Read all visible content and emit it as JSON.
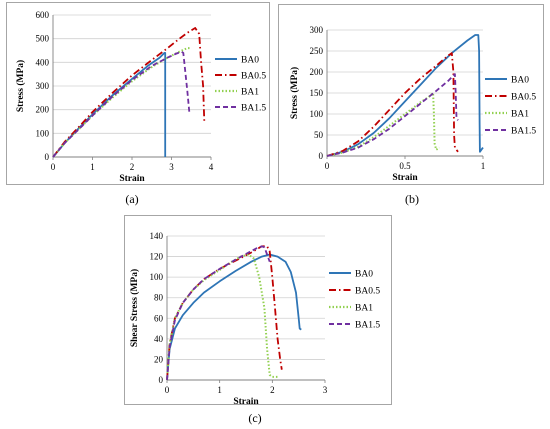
{
  "captions": {
    "a": "(a)",
    "b": "(b)",
    "c": "(c)"
  },
  "chart_data": [
    {
      "id": "a",
      "type": "line",
      "xlabel": "Strain",
      "ylabel": "Stress (MPa)",
      "xlim": [
        0,
        4
      ],
      "ylim": [
        0,
        600
      ],
      "xticks": [
        "0",
        "1",
        "2",
        "3",
        "4"
      ],
      "yticks": [
        "0",
        "100",
        "200",
        "300",
        "400",
        "500",
        "600"
      ],
      "grid": "horizontal",
      "legend_position": "right",
      "series": [
        {
          "name": "BA0",
          "color": "#2e75b6",
          "dash": "solid",
          "points": [
            [
              0,
              0
            ],
            [
              0.3,
              60
            ],
            [
              0.7,
              130
            ],
            [
              1.0,
              180
            ],
            [
              1.5,
              260
            ],
            [
              2.0,
              330
            ],
            [
              2.4,
              385
            ],
            [
              2.7,
              420
            ],
            [
              2.82,
              440
            ],
            [
              2.84,
              440
            ],
            [
              2.84,
              0
            ]
          ]
        },
        {
          "name": "BA0.5",
          "color": "#c00000",
          "dash": "dashdot",
          "points": [
            [
              0,
              0
            ],
            [
              0.3,
              65
            ],
            [
              0.7,
              135
            ],
            [
              1.0,
              190
            ],
            [
              1.5,
              270
            ],
            [
              2.0,
              345
            ],
            [
              2.5,
              410
            ],
            [
              2.9,
              460
            ],
            [
              3.2,
              500
            ],
            [
              3.4,
              525
            ],
            [
              3.6,
              545
            ],
            [
              3.7,
              520
            ],
            [
              3.75,
              400
            ],
            [
              3.8,
              300
            ],
            [
              3.83,
              150
            ]
          ]
        },
        {
          "name": "BA1",
          "color": "#92d050",
          "dash": "dotted",
          "points": [
            [
              0,
              0
            ],
            [
              0.3,
              60
            ],
            [
              0.7,
              125
            ],
            [
              1.0,
              175
            ],
            [
              1.5,
              250
            ],
            [
              2.0,
              320
            ],
            [
              2.5,
              380
            ],
            [
              2.9,
              420
            ],
            [
              3.2,
              445
            ],
            [
              3.4,
              460
            ],
            [
              3.5,
              460
            ]
          ]
        },
        {
          "name": "BA1.5",
          "color": "#7030a0",
          "dash": "dashed",
          "points": [
            [
              0,
              0
            ],
            [
              0.3,
              60
            ],
            [
              0.7,
              125
            ],
            [
              1.0,
              175
            ],
            [
              1.5,
              255
            ],
            [
              2.0,
              325
            ],
            [
              2.5,
              385
            ],
            [
              2.9,
              420
            ],
            [
              3.1,
              435
            ],
            [
              3.25,
              445
            ],
            [
              3.3,
              440
            ],
            [
              3.4,
              280
            ],
            [
              3.45,
              190
            ]
          ]
        }
      ]
    },
    {
      "id": "b",
      "type": "line",
      "xlabel": "Strain",
      "ylabel": "Stress (MPa)",
      "xlim": [
        0,
        1
      ],
      "ylim": [
        0,
        300
      ],
      "xticks": [
        "0",
        "0.5",
        "1"
      ],
      "yticks": [
        "0",
        "50",
        "100",
        "150",
        "200",
        "250",
        "300"
      ],
      "grid": "horizontal",
      "legend_position": "right",
      "series": [
        {
          "name": "BA0",
          "color": "#2e75b6",
          "dash": "solid",
          "points": [
            [
              0,
              0
            ],
            [
              0.1,
              10
            ],
            [
              0.2,
              28
            ],
            [
              0.3,
              55
            ],
            [
              0.4,
              90
            ],
            [
              0.5,
              130
            ],
            [
              0.6,
              170
            ],
            [
              0.7,
              210
            ],
            [
              0.8,
              245
            ],
            [
              0.9,
              275
            ],
            [
              0.95,
              288
            ],
            [
              0.97,
              288
            ],
            [
              0.975,
              250
            ],
            [
              0.978,
              80
            ],
            [
              0.98,
              10
            ],
            [
              0.99,
              15
            ],
            [
              1.0,
              20
            ]
          ]
        },
        {
          "name": "BA0.5",
          "color": "#c00000",
          "dash": "dashdot",
          "points": [
            [
              0,
              0
            ],
            [
              0.1,
              12
            ],
            [
              0.2,
              35
            ],
            [
              0.3,
              70
            ],
            [
              0.4,
              110
            ],
            [
              0.5,
              150
            ],
            [
              0.6,
              185
            ],
            [
              0.7,
              215
            ],
            [
              0.78,
              240
            ],
            [
              0.8,
              245
            ],
            [
              0.81,
              200
            ],
            [
              0.815,
              50
            ],
            [
              0.82,
              20
            ],
            [
              0.84,
              10
            ]
          ]
        },
        {
          "name": "BA1",
          "color": "#92d050",
          "dash": "dotted",
          "points": [
            [
              0,
              0
            ],
            [
              0.1,
              8
            ],
            [
              0.2,
              22
            ],
            [
              0.3,
              45
            ],
            [
              0.4,
              72
            ],
            [
              0.5,
              100
            ],
            [
              0.6,
              128
            ],
            [
              0.65,
              140
            ],
            [
              0.68,
              150
            ],
            [
              0.685,
              100
            ],
            [
              0.69,
              30
            ],
            [
              0.7,
              15
            ],
            [
              0.72,
              20
            ]
          ]
        },
        {
          "name": "BA1.5",
          "color": "#7030a0",
          "dash": "dashed",
          "points": [
            [
              0,
              0
            ],
            [
              0.1,
              8
            ],
            [
              0.2,
              20
            ],
            [
              0.3,
              40
            ],
            [
              0.4,
              65
            ],
            [
              0.5,
              95
            ],
            [
              0.6,
              125
            ],
            [
              0.7,
              155
            ],
            [
              0.78,
              180
            ],
            [
              0.82,
              195
            ],
            [
              0.825,
              150
            ],
            [
              0.83,
              90
            ],
            [
              0.84,
              85
            ]
          ]
        }
      ]
    },
    {
      "id": "c",
      "type": "line",
      "xlabel": "Strain",
      "ylabel": "Shear Stress (MPa)",
      "xlim": [
        0,
        3
      ],
      "ylim": [
        0,
        140
      ],
      "xticks": [
        "0",
        "1",
        "2",
        "3"
      ],
      "yticks": [
        "0",
        "20",
        "40",
        "60",
        "80",
        "100",
        "120",
        "140"
      ],
      "grid": "horizontal",
      "legend_position": "right",
      "series": [
        {
          "name": "BA0",
          "color": "#2e75b6",
          "dash": "solid",
          "points": [
            [
              0,
              0
            ],
            [
              0.05,
              30
            ],
            [
              0.15,
              50
            ],
            [
              0.3,
              63
            ],
            [
              0.5,
              75
            ],
            [
              0.7,
              85
            ],
            [
              1.0,
              96
            ],
            [
              1.3,
              106
            ],
            [
              1.6,
              115
            ],
            [
              1.8,
              120
            ],
            [
              1.95,
              122
            ],
            [
              2.1,
              120
            ],
            [
              2.25,
              115
            ],
            [
              2.35,
              105
            ],
            [
              2.45,
              85
            ],
            [
              2.5,
              60
            ],
            [
              2.52,
              50
            ],
            [
              2.55,
              49
            ]
          ]
        },
        {
          "name": "BA0.5",
          "color": "#c00000",
          "dash": "dashdot",
          "points": [
            [
              0,
              0
            ],
            [
              0.05,
              35
            ],
            [
              0.15,
              60
            ],
            [
              0.3,
              75
            ],
            [
              0.5,
              88
            ],
            [
              0.7,
              98
            ],
            [
              1.0,
              108
            ],
            [
              1.3,
              116
            ],
            [
              1.6,
              124
            ],
            [
              1.8,
              130
            ],
            [
              1.9,
              130
            ],
            [
              1.95,
              125
            ],
            [
              2.0,
              100
            ],
            [
              2.05,
              70
            ],
            [
              2.1,
              40
            ],
            [
              2.15,
              20
            ],
            [
              2.18,
              10
            ]
          ]
        },
        {
          "name": "BA1",
          "color": "#92d050",
          "dash": "dotted",
          "points": [
            [
              0,
              0
            ],
            [
              0.05,
              35
            ],
            [
              0.15,
              60
            ],
            [
              0.3,
              75
            ],
            [
              0.5,
              88
            ],
            [
              0.7,
              97
            ],
            [
              1.0,
              107
            ],
            [
              1.2,
              114
            ],
            [
              1.4,
              120
            ],
            [
              1.55,
              122
            ],
            [
              1.65,
              118
            ],
            [
              1.75,
              100
            ],
            [
              1.85,
              70
            ],
            [
              1.9,
              30
            ],
            [
              1.95,
              5
            ],
            [
              2.0,
              3
            ],
            [
              2.1,
              3
            ]
          ]
        },
        {
          "name": "BA1.5",
          "color": "#7030a0",
          "dash": "dashed",
          "points": [
            [
              0,
              0
            ],
            [
              0.05,
              32
            ],
            [
              0.15,
              58
            ],
            [
              0.3,
              75
            ],
            [
              0.5,
              88
            ],
            [
              0.7,
              98
            ],
            [
              1.0,
              108
            ],
            [
              1.3,
              117
            ],
            [
              1.55,
              124
            ],
            [
              1.7,
              128
            ],
            [
              1.8,
              130
            ],
            [
              1.85,
              129
            ],
            [
              1.9,
              122
            ],
            [
              1.95,
              115
            ]
          ]
        }
      ]
    }
  ]
}
